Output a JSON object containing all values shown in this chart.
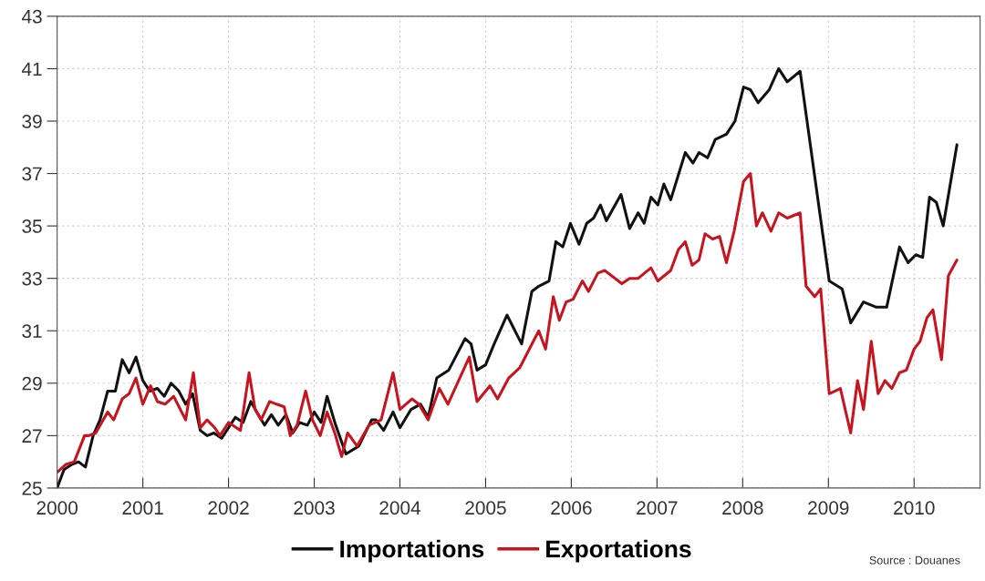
{
  "chart_data": {
    "type": "line",
    "series": [
      {
        "name": "Importations",
        "color": "#111111",
        "x": [
          2000.0,
          2000.08,
          2000.17,
          2000.25,
          2000.33,
          2000.42,
          2000.5,
          2000.59,
          2000.68,
          2000.76,
          2000.84,
          2000.92,
          2001.0,
          2001.08,
          2001.17,
          2001.25,
          2001.33,
          2001.42,
          2001.5,
          2001.58,
          2001.67,
          2001.75,
          2001.83,
          2001.92,
          2002.0,
          2002.08,
          2002.17,
          2002.26,
          2002.33,
          2002.42,
          2002.5,
          2002.58,
          2002.67,
          2002.75,
          2002.83,
          2002.92,
          2003.0,
          2003.08,
          2003.15,
          2003.25,
          2003.37,
          2003.52,
          2003.67,
          2003.72,
          2003.81,
          2003.92,
          2004.0,
          2004.13,
          2004.24,
          2004.33,
          2004.43,
          2004.57,
          2004.76,
          2004.83,
          2004.9,
          2005.0,
          2005.1,
          2005.25,
          2005.42,
          2005.54,
          2005.62,
          2005.74,
          2005.82,
          2005.9,
          2005.99,
          2006.09,
          2006.18,
          2006.26,
          2006.34,
          2006.41,
          2006.58,
          2006.68,
          2006.78,
          2006.85,
          2006.93,
          2007.01,
          2007.08,
          2007.16,
          2007.33,
          2007.42,
          2007.49,
          2007.59,
          2007.68,
          2007.81,
          2007.91,
          2008.01,
          2008.09,
          2008.18,
          2008.31,
          2008.42,
          2008.52,
          2008.67,
          2009.01,
          2009.16,
          2009.26,
          2009.41,
          2009.56,
          2009.68,
          2009.83,
          2009.93,
          2010.02,
          2010.1,
          2010.18,
          2010.26,
          2010.34,
          2010.5
        ],
        "values": [
          25.0,
          25.7,
          25.9,
          26.0,
          25.8,
          27.0,
          27.6,
          28.7,
          28.7,
          29.9,
          29.4,
          30.0,
          29.1,
          28.7,
          28.8,
          28.5,
          29.0,
          28.7,
          28.2,
          28.6,
          27.2,
          27.0,
          27.1,
          26.9,
          27.3,
          27.7,
          27.5,
          28.3,
          27.9,
          27.4,
          27.8,
          27.4,
          27.8,
          27.1,
          27.5,
          27.4,
          27.9,
          27.5,
          28.5,
          27.4,
          26.3,
          26.6,
          27.6,
          27.6,
          27.2,
          27.9,
          27.3,
          28.0,
          28.2,
          27.7,
          29.2,
          29.5,
          30.7,
          30.5,
          29.5,
          29.7,
          30.5,
          31.6,
          30.5,
          32.5,
          32.7,
          32.9,
          34.4,
          34.2,
          35.1,
          34.3,
          35.1,
          35.3,
          35.8,
          35.2,
          36.2,
          34.9,
          35.5,
          35.1,
          36.1,
          35.8,
          36.6,
          36.0,
          37.8,
          37.4,
          37.8,
          37.6,
          38.3,
          38.5,
          39.0,
          40.3,
          40.2,
          39.7,
          40.2,
          41.0,
          40.5,
          40.9,
          32.9,
          32.6,
          31.3,
          32.1,
          31.9,
          31.9,
          34.2,
          33.6,
          33.9,
          33.8,
          36.1,
          35.9,
          35.0,
          38.1
        ]
      },
      {
        "name": "Exportations",
        "color": "#c8141e",
        "x": [
          2000.0,
          2000.1,
          2000.2,
          2000.32,
          2000.37,
          2000.45,
          2000.59,
          2000.66,
          2000.76,
          2000.84,
          2000.92,
          2001.0,
          2001.09,
          2001.17,
          2001.26,
          2001.36,
          2001.5,
          2001.59,
          2001.67,
          2001.75,
          2001.84,
          2001.9,
          2002.0,
          2002.14,
          2002.24,
          2002.31,
          2002.38,
          2002.48,
          2002.56,
          2002.65,
          2002.72,
          2002.8,
          2002.9,
          2002.98,
          2003.07,
          2003.15,
          2003.24,
          2003.32,
          2003.39,
          2003.5,
          2003.64,
          2003.78,
          2003.92,
          2004.0,
          2004.14,
          2004.22,
          2004.33,
          2004.46,
          2004.56,
          2004.81,
          2004.9,
          2005.05,
          2005.14,
          2005.27,
          2005.4,
          2005.62,
          2005.7,
          2005.79,
          2005.86,
          2005.94,
          2006.02,
          2006.13,
          2006.2,
          2006.31,
          2006.39,
          2006.59,
          2006.68,
          2006.78,
          2006.93,
          2007.01,
          2007.16,
          2007.25,
          2007.33,
          2007.41,
          2007.49,
          2007.56,
          2007.65,
          2007.73,
          2007.81,
          2007.9,
          2008.01,
          2008.09,
          2008.16,
          2008.23,
          2008.33,
          2008.42,
          2008.52,
          2008.67,
          2008.74,
          2008.84,
          2008.91,
          2009.01,
          2009.14,
          2009.26,
          2009.34,
          2009.41,
          2009.5,
          2009.58,
          2009.66,
          2009.74,
          2009.83,
          2009.91,
          2010.0,
          2010.07,
          2010.15,
          2010.22,
          2010.32,
          2010.4,
          2010.5
        ],
        "values": [
          25.6,
          25.9,
          26.0,
          27.0,
          27.0,
          27.1,
          27.9,
          27.6,
          28.4,
          28.6,
          29.2,
          28.2,
          28.9,
          28.3,
          28.2,
          28.5,
          27.6,
          29.4,
          27.3,
          27.6,
          27.3,
          27.0,
          27.5,
          27.2,
          29.4,
          28.0,
          27.6,
          28.3,
          28.2,
          28.1,
          27.0,
          27.4,
          28.7,
          27.6,
          27.0,
          27.9,
          27.1,
          26.2,
          27.1,
          26.6,
          27.4,
          27.6,
          29.4,
          28.0,
          28.4,
          28.2,
          27.6,
          28.8,
          28.2,
          30.0,
          28.3,
          28.9,
          28.4,
          29.2,
          29.6,
          31.0,
          30.3,
          32.3,
          31.4,
          32.1,
          32.2,
          32.9,
          32.5,
          33.2,
          33.3,
          32.8,
          33.0,
          33.0,
          33.4,
          32.9,
          33.3,
          34.1,
          34.4,
          33.5,
          33.7,
          34.7,
          34.5,
          34.6,
          33.6,
          34.8,
          36.7,
          37.0,
          35.0,
          35.5,
          34.8,
          35.5,
          35.3,
          35.5,
          32.7,
          32.3,
          32.6,
          28.6,
          28.8,
          27.1,
          29.1,
          28.0,
          30.6,
          28.6,
          29.1,
          28.8,
          29.4,
          29.5,
          30.3,
          30.6,
          31.5,
          31.8,
          29.9,
          33.1,
          33.7
        ]
      }
    ],
    "xlim": [
      2000,
      2010.77
    ],
    "xticks": [
      2000,
      2001,
      2002,
      2003,
      2004,
      2005,
      2006,
      2007,
      2008,
      2009,
      2010
    ],
    "ylim": [
      25,
      43
    ],
    "yticks": [
      25,
      27,
      29,
      31,
      33,
      35,
      37,
      39,
      41,
      43
    ],
    "grid": true,
    "legend": "bottom",
    "marker": "none",
    "line_style": "solid",
    "annotations": [
      "Source : Douanes"
    ]
  }
}
